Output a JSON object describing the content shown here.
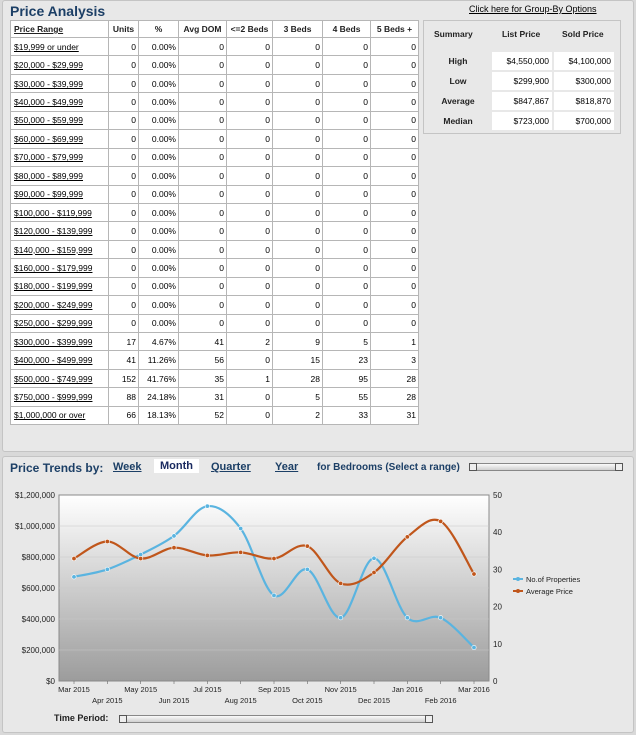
{
  "price_analysis": {
    "title": "Price Analysis",
    "group_by_link": "Click here for Group-By Options",
    "columns": [
      "Price Range",
      "Units",
      "%",
      "Avg DOM",
      "<=2 Beds",
      "3 Beds",
      "4 Beds",
      "5 Beds +"
    ],
    "rows": [
      [
        "$19,999 or under",
        "0",
        "0.00%",
        "0",
        "0",
        "0",
        "0",
        "0"
      ],
      [
        "$20,000 - $29,999",
        "0",
        "0.00%",
        "0",
        "0",
        "0",
        "0",
        "0"
      ],
      [
        "$30,000 - $39,999",
        "0",
        "0.00%",
        "0",
        "0",
        "0",
        "0",
        "0"
      ],
      [
        "$40,000 - $49,999",
        "0",
        "0.00%",
        "0",
        "0",
        "0",
        "0",
        "0"
      ],
      [
        "$50,000 - $59,999",
        "0",
        "0.00%",
        "0",
        "0",
        "0",
        "0",
        "0"
      ],
      [
        "$60,000 - $69,999",
        "0",
        "0.00%",
        "0",
        "0",
        "0",
        "0",
        "0"
      ],
      [
        "$70,000 - $79,999",
        "0",
        "0.00%",
        "0",
        "0",
        "0",
        "0",
        "0"
      ],
      [
        "$80,000 - $89,999",
        "0",
        "0.00%",
        "0",
        "0",
        "0",
        "0",
        "0"
      ],
      [
        "$90,000 - $99,999",
        "0",
        "0.00%",
        "0",
        "0",
        "0",
        "0",
        "0"
      ],
      [
        "$100,000 - $119,999",
        "0",
        "0.00%",
        "0",
        "0",
        "0",
        "0",
        "0"
      ],
      [
        "$120,000 - $139,999",
        "0",
        "0.00%",
        "0",
        "0",
        "0",
        "0",
        "0"
      ],
      [
        "$140,000 - $159,999",
        "0",
        "0.00%",
        "0",
        "0",
        "0",
        "0",
        "0"
      ],
      [
        "$160,000 - $179,999",
        "0",
        "0.00%",
        "0",
        "0",
        "0",
        "0",
        "0"
      ],
      [
        "$180,000 - $199,999",
        "0",
        "0.00%",
        "0",
        "0",
        "0",
        "0",
        "0"
      ],
      [
        "$200,000 - $249,999",
        "0",
        "0.00%",
        "0",
        "0",
        "0",
        "0",
        "0"
      ],
      [
        "$250,000 - $299,999",
        "0",
        "0.00%",
        "0",
        "0",
        "0",
        "0",
        "0"
      ],
      [
        "$300,000 - $399,999",
        "17",
        "4.67%",
        "41",
        "2",
        "9",
        "5",
        "1"
      ],
      [
        "$400,000 - $499,999",
        "41",
        "11.26%",
        "56",
        "0",
        "15",
        "23",
        "3"
      ],
      [
        "$500,000 - $749,999",
        "152",
        "41.76%",
        "35",
        "1",
        "28",
        "95",
        "28"
      ],
      [
        "$750,000 - $999,999",
        "88",
        "24.18%",
        "31",
        "0",
        "5",
        "55",
        "28"
      ],
      [
        "$1,000,000 or over",
        "66",
        "18.13%",
        "52",
        "0",
        "2",
        "33",
        "31"
      ]
    ],
    "summary": {
      "headers": [
        "Summary",
        "List Price",
        "Sold Price"
      ],
      "rows": [
        {
          "label": "High",
          "list": "$4,550,000",
          "sold": "$4,100,000"
        },
        {
          "label": "Low",
          "list": "$299,900",
          "sold": "$300,000"
        },
        {
          "label": "Average",
          "list": "$847,867",
          "sold": "$818,870"
        },
        {
          "label": "Median",
          "list": "$723,000",
          "sold": "$700,000"
        }
      ]
    }
  },
  "price_trends": {
    "title": "Price Trends by:",
    "tabs": [
      "Week",
      "Month",
      "Quarter",
      "Year"
    ],
    "active_tab": "Month",
    "bedrooms_label": "for Bedrooms (Select a range)",
    "time_period_label": "Time Period:",
    "colors": {
      "properties": "#5ab4e0",
      "price": "#c0561b"
    }
  },
  "chart_data": {
    "type": "line",
    "categories": [
      "Mar 2015",
      "Apr 2015",
      "May 2015",
      "Jun 2015",
      "Jul 2015",
      "Aug 2015",
      "Sep 2015",
      "Oct 2015",
      "Nov 2015",
      "Dec 2015",
      "Jan 2016",
      "Feb 2016",
      "Mar 2016"
    ],
    "y_left": {
      "min": 0,
      "max": 1200000,
      "ticks": [
        "$0",
        "$200,000",
        "$400,000",
        "$600,000",
        "$800,000",
        "$1,000,000",
        "$1,200,000"
      ]
    },
    "y_right": {
      "min": 0,
      "max": 50,
      "ticks": [
        "0",
        "10",
        "20",
        "30",
        "40",
        "50"
      ]
    },
    "series": [
      {
        "name": "No.of Properties",
        "axis": "right",
        "values": [
          28,
          30,
          34,
          39,
          47,
          41,
          23,
          30,
          17,
          33,
          17,
          17,
          9
        ]
      },
      {
        "name": "Average Price",
        "axis": "left",
        "values": [
          790000,
          900000,
          790000,
          860000,
          810000,
          830000,
          790000,
          870000,
          630000,
          700000,
          930000,
          1030000,
          690000
        ]
      }
    ],
    "legend_position": "right"
  }
}
